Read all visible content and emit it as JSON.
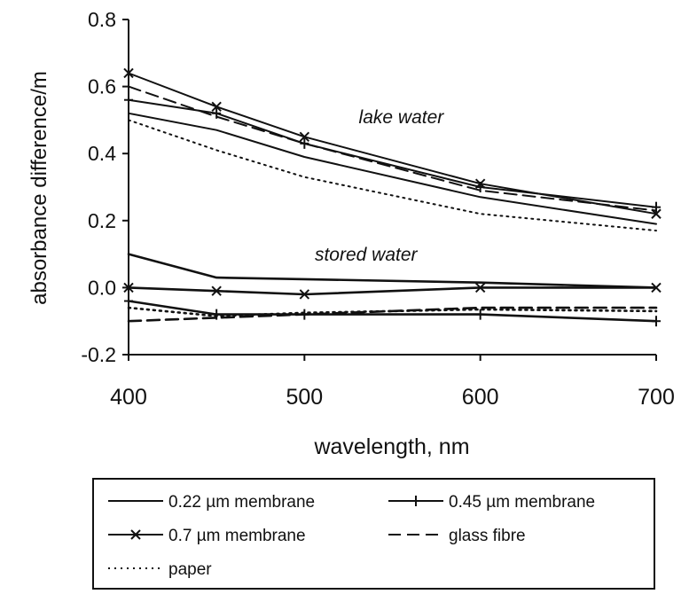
{
  "chart_data": {
    "type": "line",
    "xlabel": "wavelength, nm",
    "ylabel": "absorbance difference/m",
    "xlim": [
      400,
      700
    ],
    "ylim": [
      -0.2,
      0.8
    ],
    "xticks": [
      "400",
      "500",
      "600",
      "700"
    ],
    "yticks": [
      "0.8",
      "0.6",
      "0.4",
      "0.2",
      "0.0",
      "-0.2"
    ],
    "grid": false,
    "legend_position": "bottom",
    "annotations": [
      {
        "text": "lake water",
        "x": 555,
        "y": 0.49
      },
      {
        "text": "stored water",
        "x": 535,
        "y": 0.08
      }
    ],
    "series": [
      {
        "name": "0.22 µm membrane",
        "group": "lake water",
        "style": "solid",
        "marker": "none",
        "x": [
          400,
          450,
          500,
          600,
          700
        ],
        "y": [
          0.52,
          0.47,
          0.39,
          0.27,
          0.19
        ]
      },
      {
        "name": "0.45 µm membrane",
        "group": "lake water",
        "style": "solid",
        "marker": "plus",
        "x": [
          400,
          450,
          500,
          600,
          700
        ],
        "y": [
          0.56,
          0.52,
          0.43,
          0.3,
          0.24
        ]
      },
      {
        "name": "0.7 µm membrane",
        "group": "lake water",
        "style": "solid",
        "marker": "x",
        "x": [
          400,
          450,
          500,
          600,
          700
        ],
        "y": [
          0.64,
          0.54,
          0.45,
          0.31,
          0.22
        ]
      },
      {
        "name": "glass fibre",
        "group": "lake water",
        "style": "dashed",
        "marker": "none",
        "x": [
          400,
          450,
          500,
          600,
          700
        ],
        "y": [
          0.6,
          0.51,
          0.43,
          0.29,
          0.23
        ]
      },
      {
        "name": "paper",
        "group": "lake water",
        "style": "dotted",
        "marker": "none",
        "x": [
          400,
          450,
          500,
          600,
          700
        ],
        "y": [
          0.5,
          0.41,
          0.33,
          0.22,
          0.17
        ]
      },
      {
        "name": "0.22 µm membrane",
        "group": "stored water",
        "style": "solid",
        "marker": "none",
        "x": [
          400,
          450,
          500,
          600,
          700
        ],
        "y": [
          0.1,
          0.03,
          0.025,
          0.015,
          0.0
        ]
      },
      {
        "name": "0.45 µm membrane",
        "group": "stored water",
        "style": "solid",
        "marker": "plus",
        "x": [
          400,
          450,
          500,
          600,
          700
        ],
        "y": [
          -0.04,
          -0.08,
          -0.08,
          -0.08,
          -0.1
        ]
      },
      {
        "name": "0.7 µm membrane",
        "group": "stored water",
        "style": "solid",
        "marker": "x",
        "x": [
          400,
          450,
          500,
          600,
          700
        ],
        "y": [
          0.0,
          -0.01,
          -0.02,
          0.0,
          0.0
        ]
      },
      {
        "name": "glass fibre",
        "group": "stored water",
        "style": "dashed",
        "marker": "none",
        "x": [
          400,
          450,
          500,
          600,
          700
        ],
        "y": [
          -0.1,
          -0.09,
          -0.08,
          -0.06,
          -0.06
        ]
      },
      {
        "name": "paper",
        "group": "stored water",
        "style": "dotted",
        "marker": "none",
        "x": [
          400,
          450,
          500,
          600,
          700
        ],
        "y": [
          -0.06,
          -0.085,
          -0.075,
          -0.065,
          -0.07
        ]
      }
    ],
    "legend": [
      {
        "label": "0.22 µm membrane",
        "style": "solid",
        "marker": "none"
      },
      {
        "label": "0.45 µm membrane",
        "style": "solid",
        "marker": "plus"
      },
      {
        "label": "0.7 µm membrane",
        "style": "solid",
        "marker": "x"
      },
      {
        "label": "glass fibre",
        "style": "dashed",
        "marker": "none"
      },
      {
        "label": "paper",
        "style": "dotted",
        "marker": "none"
      }
    ],
    "colors": {
      "line": "#111111",
      "background": "#ffffff"
    }
  }
}
